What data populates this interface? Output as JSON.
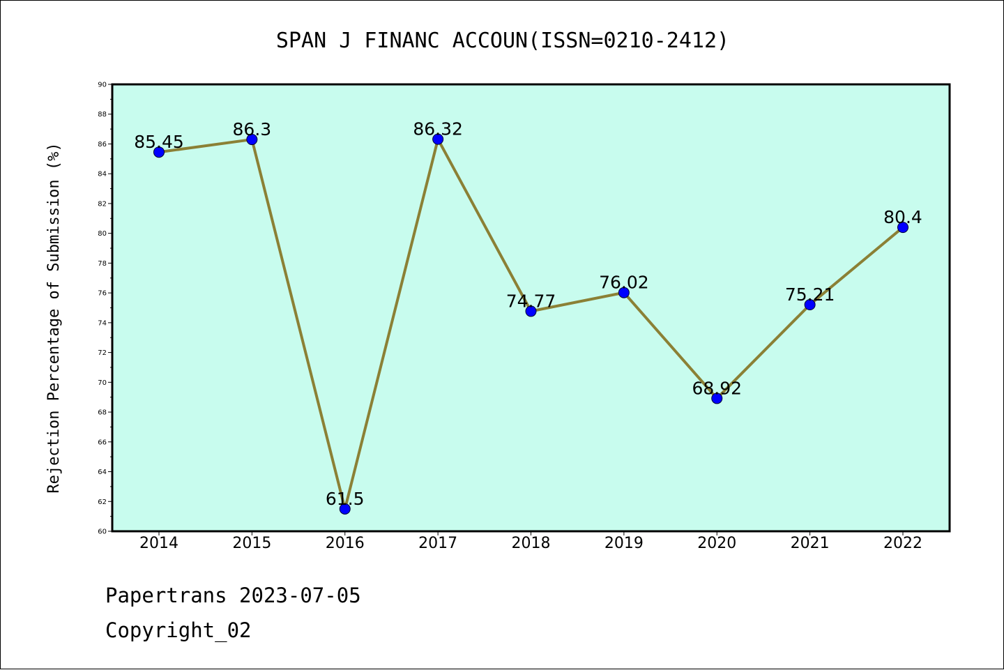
{
  "chart_data": {
    "type": "line",
    "title": "SPAN J FINANC ACCOUN(ISSN=0210-2412)",
    "xlabel": "",
    "ylabel": "Rejection Percentage of Submission (%)",
    "categories": [
      "2014",
      "2015",
      "2016",
      "2017",
      "2018",
      "2019",
      "2020",
      "2021",
      "2022"
    ],
    "values": [
      85.45,
      86.3,
      61.5,
      86.32,
      74.77,
      76.02,
      68.92,
      75.21,
      80.4
    ],
    "data_labels": [
      "85.45",
      "86.3",
      "61.5",
      "86.32",
      "74.77",
      "76.02",
      "68.92",
      "75.21",
      "80.4"
    ],
    "ylim": [
      60,
      90
    ],
    "yticks": [
      "60",
      "62",
      "64",
      "66",
      "68",
      "70",
      "72",
      "74",
      "76",
      "78",
      "80",
      "82",
      "84",
      "86",
      "88",
      "90"
    ],
    "grid": false,
    "legend": "none",
    "colors": {
      "plot_background": "#c8fcee",
      "line": "#8b8035",
      "marker": "#0000ff"
    }
  },
  "footer": {
    "line1": "Papertrans 2023-07-05",
    "line2": "Copyright_02"
  }
}
